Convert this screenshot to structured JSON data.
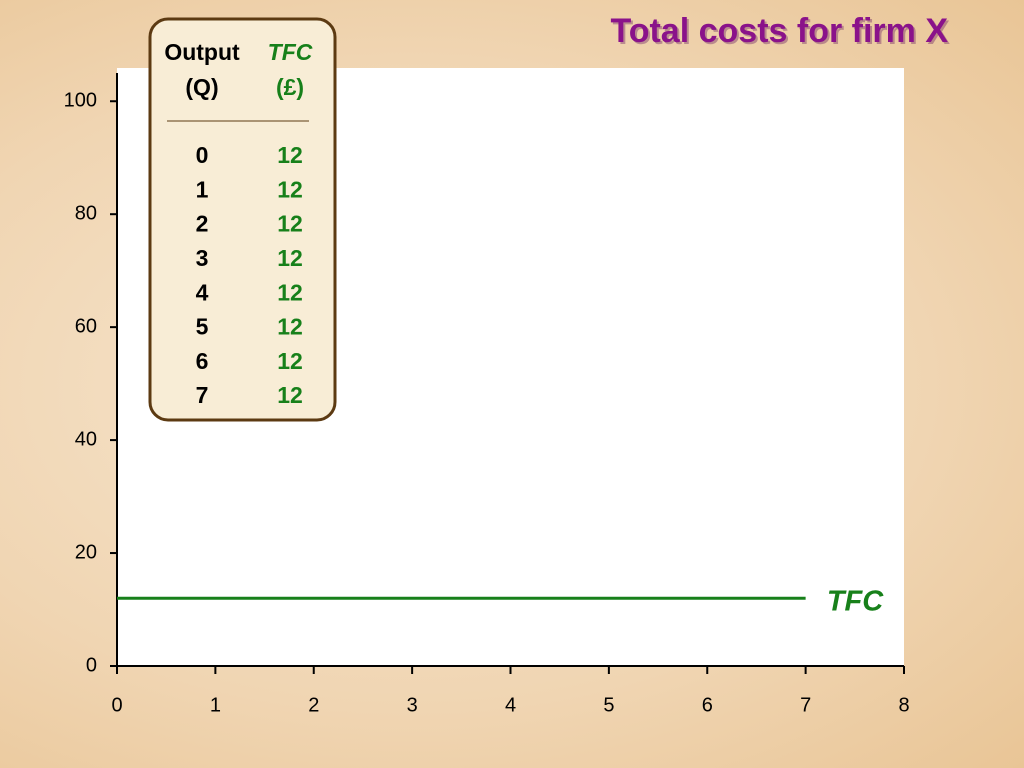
{
  "chart_data": {
    "type": "line",
    "title": "Total costs for firm X",
    "x": [
      0,
      1,
      2,
      3,
      4,
      5,
      6,
      7
    ],
    "series": [
      {
        "name": "TFC",
        "color": "#17801a",
        "values": [
          12,
          12,
          12,
          12,
          12,
          12,
          12,
          12
        ]
      }
    ],
    "xlim": [
      0,
      8
    ],
    "xticks": [
      0,
      1,
      2,
      3,
      4,
      5,
      6,
      7,
      8
    ],
    "ylim": [
      0,
      105
    ],
    "yticks": [
      0,
      20,
      40,
      60,
      80,
      100
    ],
    "grid": false
  },
  "table": {
    "output_header": "Output",
    "output_unit": "(Q)",
    "tfc_unit": "(£)"
  }
}
